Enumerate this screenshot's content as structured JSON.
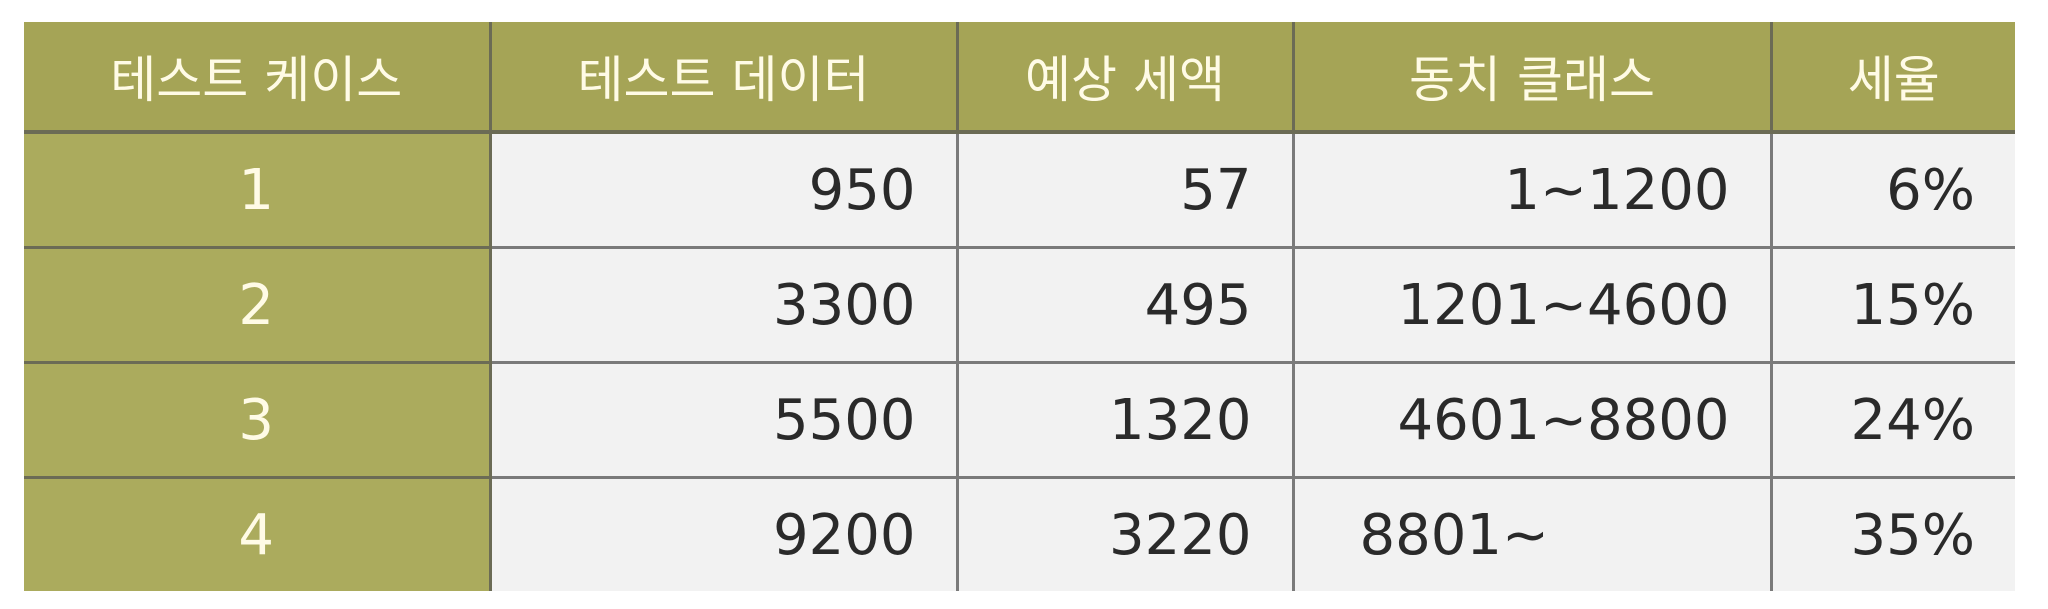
{
  "table": {
    "headers": [
      "테스트 케이스",
      "테스트 데이터",
      "예상 세액",
      "동치 클래스",
      "세율"
    ],
    "rows": [
      {
        "case": "1",
        "data": "950",
        "tax": "57",
        "class": "1~1200",
        "rate": "6%"
      },
      {
        "case": "2",
        "data": "3300",
        "tax": "495",
        "class": "1201~4600",
        "rate": "15%"
      },
      {
        "case": "3",
        "data": "5500",
        "tax": "1320",
        "class": "4601~8800",
        "rate": "24%"
      },
      {
        "case": "4",
        "data": "9200",
        "tax": "3220",
        "class": "8801~",
        "rate": "35%"
      }
    ]
  },
  "colors": {
    "header_bg": "#a5a456",
    "header_text": "#fffbe6",
    "cell_bg": "#f2f2f2",
    "border": "#7a7a7a"
  }
}
